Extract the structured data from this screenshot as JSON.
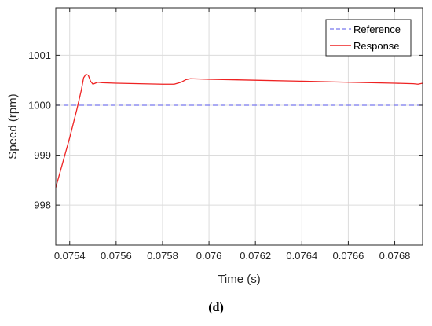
{
  "caption": "(d)",
  "chart_data": {
    "type": "line",
    "xlabel": "Time (s)",
    "ylabel": "Speed (rpm)",
    "xlim": [
      0.07534,
      0.07692
    ],
    "ylim": [
      997.2,
      1001.95
    ],
    "xticks": [
      0.0754,
      0.0756,
      0.0758,
      0.076,
      0.0762,
      0.0764,
      0.0766,
      0.0768
    ],
    "xtick_labels": [
      "0.0754",
      "0.0756",
      "0.0758",
      "0.076",
      "0.0762",
      "0.0764",
      "0.0766",
      "0.0768"
    ],
    "yticks": [
      998,
      999,
      1000,
      1001
    ],
    "ytick_labels": [
      "998",
      "999",
      "1000",
      "1001"
    ],
    "grid": true,
    "legend_position": "top-right",
    "series": [
      {
        "name": "Reference",
        "color": "#7777ee",
        "style": "dashed",
        "x": [
          0.07534,
          0.07692
        ],
        "y": [
          1000.0,
          1000.0
        ]
      },
      {
        "name": "Response",
        "color": "#ee2222",
        "style": "solid",
        "x": [
          0.07534,
          0.07537,
          0.0754,
          0.07543,
          0.07545,
          0.07546,
          0.07547,
          0.07548,
          0.07549,
          0.0755,
          0.07551,
          0.07552,
          0.07554,
          0.0756,
          0.0757,
          0.0758,
          0.07585,
          0.07588,
          0.0759,
          0.07592,
          0.076,
          0.0762,
          0.0764,
          0.0766,
          0.0768,
          0.07688,
          0.0769,
          0.07692
        ],
        "y": [
          998.35,
          998.85,
          999.35,
          999.9,
          1000.3,
          1000.55,
          1000.62,
          1000.6,
          1000.48,
          1000.42,
          1000.44,
          1000.46,
          1000.45,
          1000.44,
          1000.43,
          1000.42,
          1000.42,
          1000.46,
          1000.51,
          1000.53,
          1000.52,
          1000.5,
          1000.48,
          1000.46,
          1000.44,
          1000.43,
          1000.42,
          1000.44
        ]
      }
    ]
  }
}
